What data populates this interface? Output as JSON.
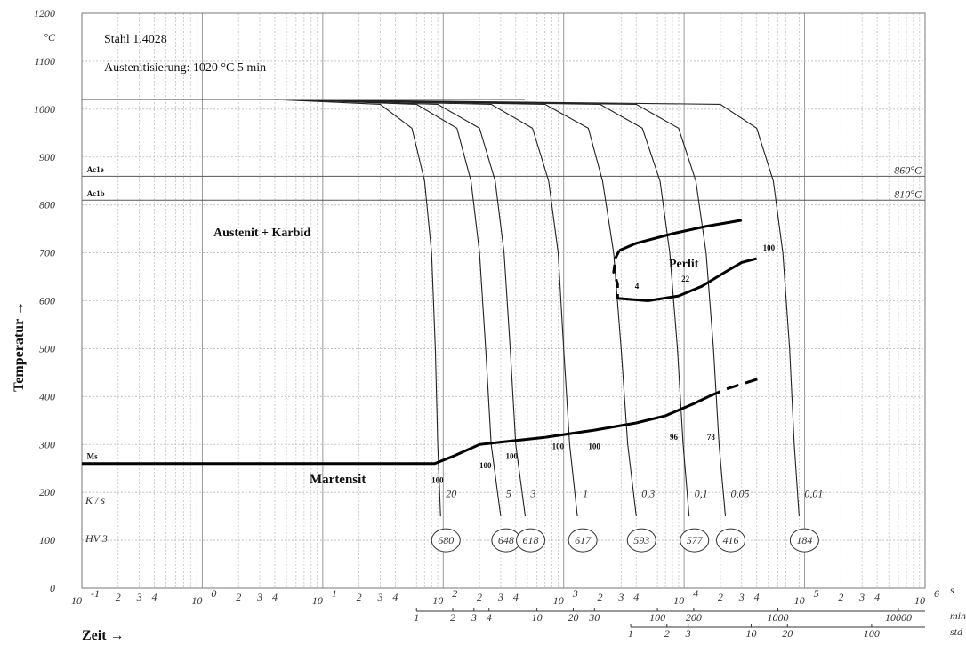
{
  "chart_data": {
    "type": "line",
    "title": "Stahl 1.4028",
    "subtitle": "Austenitisierung: 1020 °C 5 min",
    "ylabel": "Temperatur →",
    "xlabel": "Zeit →",
    "y_unit": "°C",
    "x_scale": "log",
    "xlim": [
      0.1,
      1000000
    ],
    "ylim": [
      0,
      1200
    ],
    "y_ticks": [
      0,
      100,
      200,
      300,
      400,
      500,
      600,
      700,
      800,
      900,
      1000,
      1100,
      1200
    ],
    "x_decade_labels": [
      {
        "base": "10",
        "exp": "-1",
        "x": 0.1
      },
      {
        "base": "10",
        "exp": "0",
        "x": 1
      },
      {
        "base": "10",
        "exp": "1",
        "x": 10
      },
      {
        "base": "10",
        "exp": "2",
        "x": 100
      },
      {
        "base": "10",
        "exp": "3",
        "x": 1000
      },
      {
        "base": "10",
        "exp": "4",
        "x": 10000
      },
      {
        "base": "10",
        "exp": "5",
        "x": 100000
      },
      {
        "base": "10",
        "exp": "6",
        "x": 1000000
      }
    ],
    "x_minor_labels": [
      "2",
      "3",
      "4"
    ],
    "x_unit_s": "s",
    "min_axis": {
      "unit": "min",
      "ticks": [
        {
          "label": "1",
          "sec": 60
        },
        {
          "label": "2",
          "sec": 120
        },
        {
          "label": "3",
          "sec": 180
        },
        {
          "label": "4",
          "sec": 240
        },
        {
          "label": "10",
          "sec": 600
        },
        {
          "label": "20",
          "sec": 1200
        },
        {
          "label": "30",
          "sec": 1800
        },
        {
          "label": "100",
          "sec": 6000
        },
        {
          "label": "200",
          "sec": 12000
        },
        {
          "label": "1000",
          "sec": 60000
        },
        {
          "label": "10000",
          "sec": 600000
        }
      ]
    },
    "h_axis": {
      "unit": "std",
      "ticks": [
        {
          "label": "1",
          "sec": 3600
        },
        {
          "label": "2",
          "sec": 7200
        },
        {
          "label": "3",
          "sec": 10800
        },
        {
          "label": "10",
          "sec": 36000
        },
        {
          "label": "20",
          "sec": 72000
        },
        {
          "label": "100",
          "sec": 360000
        }
      ]
    },
    "reference_lines": [
      {
        "name": "Ac1e",
        "y": 860,
        "value_label": "860°C"
      },
      {
        "name": "Ac1b",
        "y": 810,
        "value_label": "810°C"
      },
      {
        "name": "Ms",
        "y": 260
      }
    ],
    "regions": [
      "Austenit + Karbid",
      "Perlit",
      "Martensit"
    ],
    "austenitizing_temp": 1020,
    "cooling_curves": [
      {
        "rate": "20",
        "hardness": "680",
        "points": [
          [
            4,
            1020
          ],
          [
            30,
            1010
          ],
          [
            55,
            960
          ],
          [
            70,
            850
          ],
          [
            80,
            700
          ],
          [
            86,
            500
          ],
          [
            90,
            300
          ],
          [
            95,
            150
          ]
        ]
      },
      {
        "rate": "5",
        "hardness": "648",
        "points": [
          [
            5,
            1020
          ],
          [
            60,
            1010
          ],
          [
            130,
            960
          ],
          [
            170,
            850
          ],
          [
            200,
            700
          ],
          [
            225,
            500
          ],
          [
            250,
            300
          ],
          [
            300,
            150
          ]
        ]
      },
      {
        "rate": "3",
        "hardness": "618",
        "points": [
          [
            5,
            1020
          ],
          [
            90,
            1010
          ],
          [
            200,
            960
          ],
          [
            270,
            850
          ],
          [
            320,
            700
          ],
          [
            360,
            500
          ],
          [
            400,
            300
          ],
          [
            480,
            150
          ]
        ]
      },
      {
        "rate": "1",
        "hardness": "617",
        "points": [
          [
            5,
            1020
          ],
          [
            250,
            1010
          ],
          [
            550,
            960
          ],
          [
            750,
            850
          ],
          [
            900,
            700
          ],
          [
            1000,
            500
          ],
          [
            1120,
            300
          ],
          [
            1300,
            150
          ]
        ]
      },
      {
        "rate": "0,3",
        "hardness": "593",
        "points": [
          [
            5,
            1020
          ],
          [
            700,
            1010
          ],
          [
            1600,
            960
          ],
          [
            2100,
            850
          ],
          [
            2600,
            700
          ],
          [
            3000,
            500
          ],
          [
            3400,
            300
          ],
          [
            4000,
            150
          ]
        ]
      },
      {
        "rate": "0,1",
        "hardness": "577",
        "points": [
          [
            5,
            1020
          ],
          [
            2000,
            1010
          ],
          [
            4500,
            960
          ],
          [
            6300,
            850
          ],
          [
            7600,
            700
          ],
          [
            8800,
            500
          ],
          [
            9800,
            300
          ],
          [
            11000,
            150
          ]
        ]
      },
      {
        "rate": "0,05",
        "hardness": "416",
        "points": [
          [
            5,
            1020
          ],
          [
            4000,
            1010
          ],
          [
            9000,
            960
          ],
          [
            12500,
            850
          ],
          [
            15200,
            700
          ],
          [
            17500,
            500
          ],
          [
            19500,
            300
          ],
          [
            22000,
            150
          ]
        ]
      },
      {
        "rate": "0,01",
        "hardness": "184",
        "points": [
          [
            5,
            1020
          ],
          [
            20000,
            1010
          ],
          [
            40000,
            960
          ],
          [
            55000,
            850
          ],
          [
            66000,
            700
          ],
          [
            75000,
            500
          ],
          [
            82000,
            300
          ],
          [
            90000,
            150
          ]
        ]
      }
    ],
    "martensite_start": [
      [
        0.1,
        260
      ],
      [
        85,
        260
      ],
      [
        120,
        275
      ],
      [
        200,
        300
      ],
      [
        300,
        305
      ],
      [
        700,
        315
      ],
      [
        1800,
        330
      ],
      [
        4000,
        345
      ],
      [
        7000,
        360
      ],
      [
        12000,
        385
      ],
      [
        16000,
        400
      ]
    ],
    "martensite_start_dashed": [
      [
        16000,
        400
      ],
      [
        22000,
        415
      ],
      [
        45000,
        440
      ]
    ],
    "perlite_region": {
      "upper": [
        [
          2900,
          705
        ],
        [
          4000,
          720
        ],
        [
          8000,
          740
        ],
        [
          15000,
          755
        ],
        [
          30000,
          768
        ]
      ],
      "lower": [
        [
          2800,
          605
        ],
        [
          5000,
          600
        ],
        [
          9000,
          610
        ],
        [
          14000,
          630
        ],
        [
          22000,
          660
        ],
        [
          30000,
          680
        ],
        [
          40000,
          688
        ]
      ],
      "start_dashed": [
        [
          2900,
          705
        ],
        [
          2700,
          690
        ],
        [
          2600,
          660
        ],
        [
          2800,
          635
        ],
        [
          2800,
          605
        ]
      ]
    },
    "annotations": [
      {
        "text": "Ms",
        "x": 0.11,
        "y": 270
      },
      {
        "text": "Ac1e",
        "x": 0.11,
        "y": 868
      },
      {
        "text": "Ac1b",
        "x": 0.11,
        "y": 818
      },
      {
        "text": "100",
        "x": 80,
        "y": 220
      },
      {
        "text": "100",
        "x": 200,
        "y": 250
      },
      {
        "text": "100",
        "x": 330,
        "y": 270
      },
      {
        "text": "100",
        "x": 800,
        "y": 290
      },
      {
        "text": "100",
        "x": 1600,
        "y": 290
      },
      {
        "text": "96",
        "x": 7600,
        "y": 310
      },
      {
        "text": "78",
        "x": 15500,
        "y": 310
      },
      {
        "text": "100",
        "x": 45000,
        "y": 705
      },
      {
        "text": "22",
        "x": 9500,
        "y": 640
      },
      {
        "text": "4",
        "x": 3900,
        "y": 625
      }
    ],
    "rate_row_label": "K / s",
    "hardness_row_label": "HV 3",
    "grid": true
  }
}
